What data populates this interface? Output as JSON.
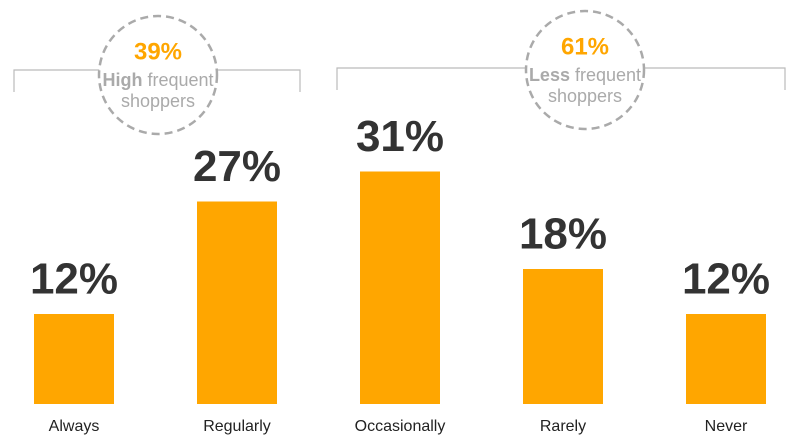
{
  "chart_data": {
    "type": "bar",
    "categories": [
      "Always",
      "Regularly",
      "Occasionally",
      "Rarely",
      "Never"
    ],
    "values": [
      12,
      27,
      31,
      18,
      12
    ],
    "value_labels": [
      "12%",
      "27%",
      "31%",
      "18%",
      "12%"
    ],
    "color": "#ffa600",
    "annotations": [
      {
        "value": 39,
        "value_label": "39%",
        "emphasis": "High",
        "text": "frequent",
        "text2": "shoppers"
      },
      {
        "value": 61,
        "value_label": "61%",
        "emphasis": "Less",
        "text": "frequent",
        "text2": "shoppers"
      }
    ]
  }
}
